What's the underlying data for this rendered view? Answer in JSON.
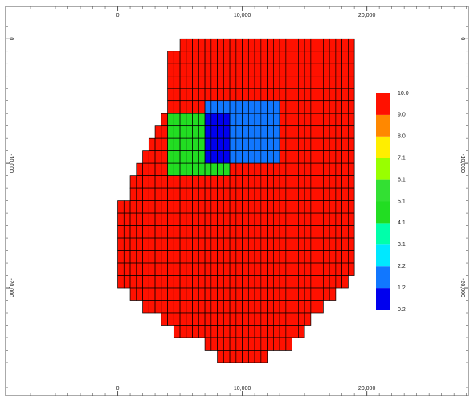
{
  "chart_data": {
    "type": "grid",
    "xlim": [
      -9000,
      28150
    ],
    "ylim": [
      -28650,
      2600
    ],
    "xticks": [
      0,
      {
        "value": 10000,
        "label": "10,000"
      },
      {
        "value": 20000,
        "label": "20,000"
      }
    ],
    "yticks": [
      0,
      {
        "value": -10000,
        "label": "-10,000"
      },
      {
        "value": -20000,
        "label": "-20,000"
      }
    ],
    "minor_tick": 1000,
    "cell_width": 500,
    "base_value": 10,
    "rows": [
      {
        "y": [
          0,
          -1000
        ],
        "x": [
          5000,
          19000
        ]
      },
      {
        "y": [
          -1000,
          -2000
        ],
        "x": [
          4000,
          19000
        ]
      },
      {
        "y": [
          -2000,
          -3000
        ],
        "x": [
          4000,
          19000
        ]
      },
      {
        "y": [
          -3000,
          -4000
        ],
        "x": [
          4000,
          19000
        ]
      },
      {
        "y": [
          -4000,
          -5000
        ],
        "x": [
          4000,
          19000
        ]
      },
      {
        "y": [
          -5000,
          -6000
        ],
        "x": [
          4000,
          19000
        ]
      },
      {
        "y": [
          -6000,
          -7000
        ],
        "x": [
          3500,
          19000
        ]
      },
      {
        "y": [
          -7000,
          -8000
        ],
        "x": [
          3000,
          19000
        ]
      },
      {
        "y": [
          -8000,
          -9000
        ],
        "x": [
          2500,
          19000
        ]
      },
      {
        "y": [
          -9000,
          -10000
        ],
        "x": [
          2000,
          19000
        ]
      },
      {
        "y": [
          -10000,
          -11000
        ],
        "x": [
          1500,
          19000
        ]
      },
      {
        "y": [
          -11000,
          -12000
        ],
        "x": [
          1000,
          19000
        ]
      },
      {
        "y": [
          -12000,
          -13000
        ],
        "x": [
          1000,
          19000
        ]
      },
      {
        "y": [
          -13000,
          -14000
        ],
        "x": [
          0,
          19000
        ]
      },
      {
        "y": [
          -14000,
          -15000
        ],
        "x": [
          0,
          19000
        ]
      },
      {
        "y": [
          -15000,
          -16000
        ],
        "x": [
          0,
          19000
        ]
      },
      {
        "y": [
          -16000,
          -17000
        ],
        "x": [
          0,
          19000
        ]
      },
      {
        "y": [
          -17000,
          -18000
        ],
        "x": [
          0,
          19000
        ]
      },
      {
        "y": [
          -18000,
          -19000
        ],
        "x": [
          0,
          19000
        ]
      },
      {
        "y": [
          -19000,
          -20000
        ],
        "x": [
          0,
          18500
        ]
      },
      {
        "y": [
          -20000,
          -21000
        ],
        "x": [
          1000,
          17500
        ]
      },
      {
        "y": [
          -21000,
          -22000
        ],
        "x": [
          2000,
          16500
        ]
      },
      {
        "y": [
          -22000,
          -23000
        ],
        "x": [
          3500,
          15500
        ]
      },
      {
        "y": [
          -23000,
          -24000
        ],
        "x": [
          4500,
          15000
        ]
      },
      {
        "y": [
          -24000,
          -25000
        ],
        "x": [
          7000,
          14000
        ]
      },
      {
        "y": [
          -25000,
          -26000
        ],
        "x": [
          8000,
          12000
        ]
      }
    ],
    "zones": [
      {
        "value": 2,
        "x": [
          7000,
          13000
        ],
        "y": [
          -5000,
          -10000
        ]
      },
      {
        "value": 5,
        "x": [
          4000,
          7000
        ],
        "y": [
          -6000,
          -11000
        ]
      },
      {
        "value": 5,
        "x": [
          7000,
          9000
        ],
        "y": [
          -10000,
          -11000
        ]
      },
      {
        "value": 0.5,
        "x": [
          7000,
          9000
        ],
        "y": [
          -6000,
          -10000
        ]
      }
    ],
    "colorbar": {
      "levels": [
        0.2,
        1.2,
        2.2,
        3.1,
        4.1,
        5.1,
        6.1,
        7.1,
        {
          "value": 8,
          "label": "8.0"
        },
        {
          "value": 9,
          "label": "9.0"
        },
        {
          "value": 10,
          "label": "10.0"
        }
      ],
      "colors": [
        "#0000ee",
        "#1177ff",
        "#00e8ff",
        "#00ffaa",
        "#22dd22",
        "#33e033",
        "#99ff00",
        "#ffee00",
        "#ff8800",
        "#ff1100"
      ]
    }
  }
}
